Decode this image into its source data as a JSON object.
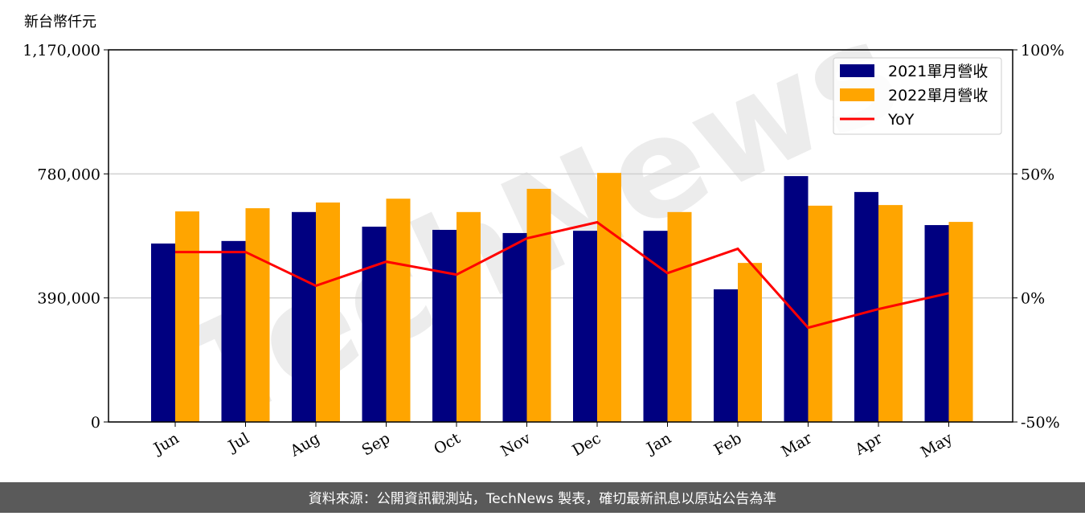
{
  "chart_data": {
    "type": "bar_line",
    "y_label": "新台幣仟元",
    "categories": [
      "Jun",
      "Jul",
      "Aug",
      "Sep",
      "Oct",
      "Nov",
      "Dec",
      "Jan",
      "Feb",
      "Mar",
      "Apr",
      "May"
    ],
    "series": [
      {
        "name": "2021單月營收",
        "color": "#000080",
        "values": [
          561000,
          569000,
          660000,
          614000,
          604000,
          594000,
          601000,
          601000,
          417000,
          773000,
          723000,
          619000
        ]
      },
      {
        "name": "2022單月營收",
        "color": "#ffa500",
        "values": [
          662000,
          672000,
          690000,
          702000,
          660000,
          733000,
          783000,
          660000,
          500000,
          680000,
          682000,
          629000
        ]
      },
      {
        "name": "YoY",
        "color": "#ff0000",
        "axis": "y2",
        "values": [
          18.5,
          18.5,
          4.9,
          14.6,
          9.4,
          24,
          30.5,
          10,
          19.8,
          -12,
          -4.5,
          1.9
        ]
      }
    ],
    "ylim": [
      0,
      1170000
    ],
    "yticks": [
      0,
      {
        "value": 390000,
        "label": "390,000"
      },
      {
        "value": 780000,
        "label": "780,000"
      },
      {
        "value": 1170000,
        "label": "1,170,000"
      }
    ],
    "y2lim": [
      -50,
      100
    ],
    "y2ticks": [
      {
        "value": -50,
        "label": "-50%"
      },
      {
        "value": 0,
        "label": "0%"
      },
      {
        "value": 50,
        "label": "50%"
      },
      {
        "value": 100,
        "label": "100%"
      }
    ],
    "grid": true,
    "legend": "upper right",
    "watermark": "TechNews",
    "footer": "資料來源：公開資訊觀測站，TechNews 製表，確切最新訊息以原站公告為準"
  }
}
